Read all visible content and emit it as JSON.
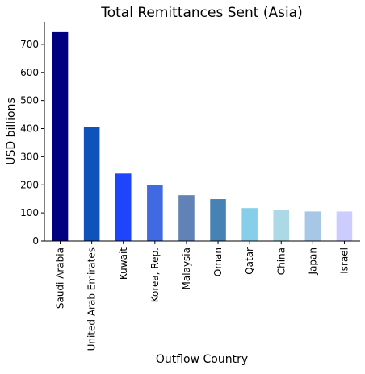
{
  "chart_data": {
    "type": "bar",
    "title": "Total Remittances Sent (Asia)",
    "xlabel": "Outflow Country",
    "ylabel": "USD billions",
    "ylim": [
      0,
      780
    ],
    "yticks": [
      0,
      100,
      200,
      300,
      400,
      500,
      600,
      700
    ],
    "grid": false,
    "categories": [
      "Saudi Arabia",
      "United Arab Emirates",
      "Kuwait",
      "Korea, Rep.",
      "Malaysia",
      "Oman",
      "Qatar",
      "China",
      "Japan",
      "Israel"
    ],
    "values": [
      743,
      407,
      240,
      200,
      163,
      149,
      117,
      109,
      105,
      105
    ],
    "colors": [
      "#000080",
      "#0f52ba",
      "#1f45fc",
      "#4169e1",
      "#6082b6",
      "#4682b4",
      "#87ceeb",
      "#add8e6",
      "#a7c7e7",
      "#ccccff"
    ]
  }
}
